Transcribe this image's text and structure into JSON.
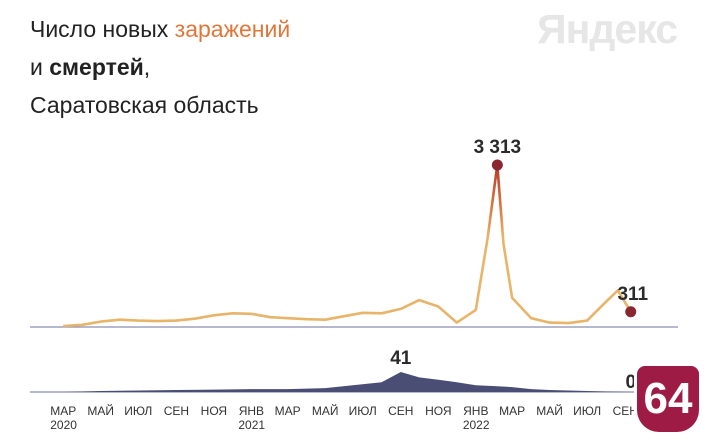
{
  "title": {
    "line1_prefix": "Число новых ",
    "line1_accent": "заражений",
    "line2_prefix": "и ",
    "line2_bold": "смертей",
    "line2_suffix": ",",
    "line3": "Саратовская область"
  },
  "logo_text": "Яндекс",
  "badge_text": "64",
  "colors": {
    "infections_line": "#e8b46a",
    "infections_peak": "#c0452e",
    "deaths_fill": "#4a4e74",
    "axis": "#8a8fb0",
    "marker": "#8b2530",
    "badge": "#9e1b46"
  },
  "chart_data": [
    {
      "type": "line",
      "name": "infections",
      "x_dates": [
        "2020-03-01",
        "2020-04-01",
        "2020-05-01",
        "2020-06-01",
        "2020-07-01",
        "2020-08-01",
        "2020-09-01",
        "2020-10-01",
        "2020-11-01",
        "2020-12-01",
        "2021-01-01",
        "2021-02-01",
        "2021-03-01",
        "2021-04-01",
        "2021-05-01",
        "2021-06-01",
        "2021-07-01",
        "2021-08-01",
        "2021-09-01",
        "2021-10-01",
        "2021-11-01",
        "2021-12-01",
        "2022-01-01",
        "2022-01-20",
        "2022-02-05",
        "2022-02-15",
        "2022-03-01",
        "2022-04-01",
        "2022-05-01",
        "2022-06-01",
        "2022-07-01",
        "2022-08-01",
        "2022-08-20",
        "2022-09-01",
        "2022-09-10"
      ],
      "values": [
        20,
        45,
        110,
        150,
        130,
        120,
        130,
        170,
        240,
        280,
        270,
        200,
        180,
        160,
        150,
        220,
        290,
        280,
        370,
        550,
        420,
        90,
        350,
        1800,
        3313,
        1700,
        600,
        180,
        90,
        80,
        130,
        520,
        750,
        500,
        311
      ],
      "annotations": [
        {
          "label": "3 313",
          "x": "2022-02-05",
          "value": 3313
        },
        {
          "label": "311",
          "x": "2022-09-10",
          "value": 311
        }
      ],
      "ylim": [
        0,
        3600
      ]
    },
    {
      "type": "area",
      "name": "deaths",
      "x_dates": [
        "2020-03-01",
        "2020-05-01",
        "2020-07-01",
        "2020-09-01",
        "2020-11-01",
        "2021-01-01",
        "2021-03-01",
        "2021-05-01",
        "2021-06-15",
        "2021-08-01",
        "2021-09-01",
        "2021-10-01",
        "2021-11-01",
        "2021-12-01",
        "2022-01-01",
        "2022-02-01",
        "2022-03-01",
        "2022-04-01",
        "2022-05-01",
        "2022-06-01",
        "2022-07-01",
        "2022-08-01",
        "2022-09-10"
      ],
      "values": [
        0,
        2,
        3,
        4,
        5,
        6,
        6,
        8,
        14,
        20,
        41,
        30,
        25,
        20,
        14,
        12,
        10,
        6,
        4,
        3,
        2,
        1,
        0
      ],
      "annotations": [
        {
          "label": "41",
          "x": "2021-09-01",
          "value": 41
        },
        {
          "label": "0",
          "x": "2022-09-10",
          "value": 0
        }
      ],
      "ylim": [
        0,
        50
      ]
    }
  ],
  "x_axis": {
    "ticks": [
      {
        "label": "МАР",
        "year": "2020",
        "date": "2020-03-01"
      },
      {
        "label": "МАЙ",
        "year": "",
        "date": "2020-05-01"
      },
      {
        "label": "ИЮЛ",
        "year": "",
        "date": "2020-07-01"
      },
      {
        "label": "СЕН",
        "year": "",
        "date": "2020-09-01"
      },
      {
        "label": "НОЯ",
        "year": "",
        "date": "2020-11-01"
      },
      {
        "label": "ЯНВ",
        "year": "2021",
        "date": "2021-01-01"
      },
      {
        "label": "МАР",
        "year": "",
        "date": "2021-03-01"
      },
      {
        "label": "МАЙ",
        "year": "",
        "date": "2021-05-01"
      },
      {
        "label": "ИЮЛ",
        "year": "",
        "date": "2021-07-01"
      },
      {
        "label": "СЕН",
        "year": "",
        "date": "2021-09-01"
      },
      {
        "label": "НОЯ",
        "year": "",
        "date": "2021-11-01"
      },
      {
        "label": "ЯНВ",
        "year": "2022",
        "date": "2022-01-01"
      },
      {
        "label": "МАР",
        "year": "",
        "date": "2022-03-01"
      },
      {
        "label": "МАЙ",
        "year": "",
        "date": "2022-05-01"
      },
      {
        "label": "ИЮЛ",
        "year": "",
        "date": "2022-07-01"
      },
      {
        "label": "СЕН",
        "year": "",
        "date": "2022-09-01"
      }
    ]
  }
}
